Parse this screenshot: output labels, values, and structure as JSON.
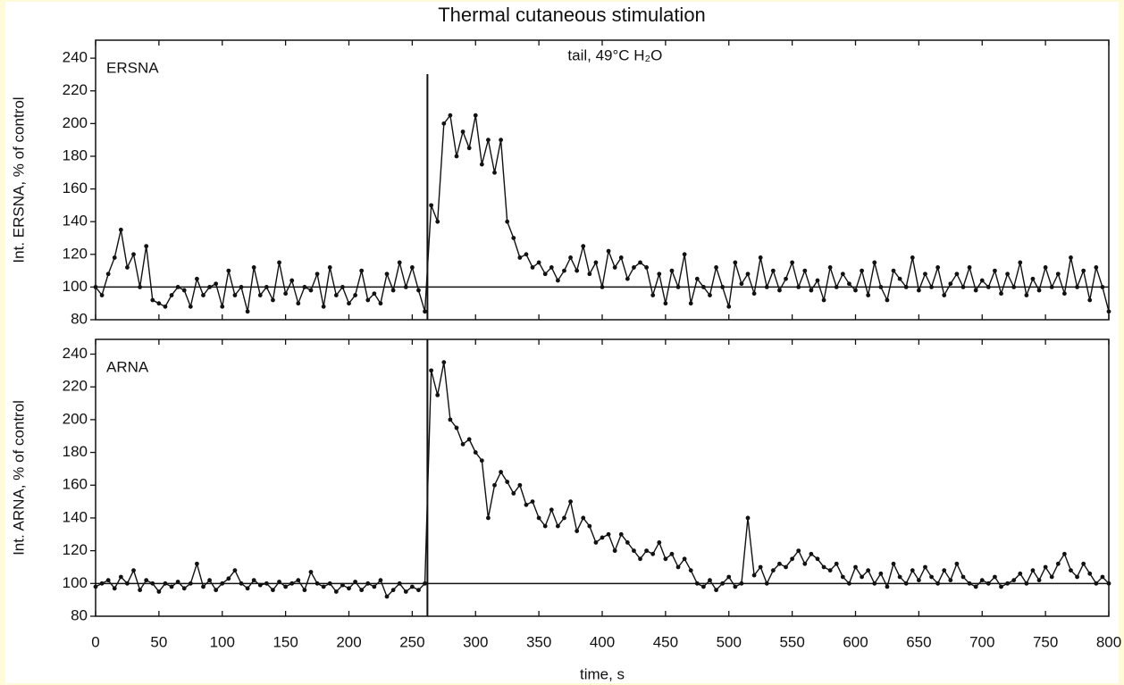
{
  "chart_data": [
    {
      "type": "line",
      "title": "Thermal cutaneous stimulation",
      "ylabel": "Int. ERSNA, % of control",
      "annotations": [
        {
          "text": "tail, 49°C H₂O",
          "x": 262
        }
      ],
      "reference": 100,
      "xlim": [
        0,
        800
      ],
      "xticks": [
        0,
        50,
        100,
        150,
        200,
        250,
        300,
        350,
        400,
        450,
        500,
        550,
        600,
        650,
        700,
        750,
        800
      ],
      "ylim": [
        80,
        251
      ],
      "yticks": [
        80,
        100,
        120,
        140,
        160,
        180,
        200,
        220,
        240
      ],
      "x": [
        0,
        5,
        10,
        15,
        20,
        25,
        30,
        35,
        40,
        45,
        50,
        55,
        60,
        65,
        70,
        75,
        80,
        85,
        90,
        95,
        100,
        105,
        110,
        115,
        120,
        125,
        130,
        135,
        140,
        145,
        150,
        155,
        160,
        165,
        170,
        175,
        180,
        185,
        190,
        195,
        200,
        205,
        210,
        215,
        220,
        225,
        230,
        235,
        240,
        245,
        250,
        255,
        260,
        265,
        270,
        275,
        280,
        285,
        290,
        295,
        300,
        305,
        310,
        315,
        320,
        325,
        330,
        335,
        340,
        345,
        350,
        355,
        360,
        365,
        370,
        375,
        380,
        385,
        390,
        395,
        400,
        405,
        410,
        415,
        420,
        425,
        430,
        435,
        440,
        445,
        450,
        455,
        460,
        465,
        470,
        475,
        480,
        485,
        490,
        495,
        500,
        505,
        510,
        515,
        520,
        525,
        530,
        535,
        540,
        545,
        550,
        555,
        560,
        565,
        570,
        575,
        580,
        585,
        590,
        595,
        600,
        605,
        610,
        615,
        620,
        625,
        630,
        635,
        640,
        645,
        650,
        655,
        660,
        665,
        670,
        675,
        680,
        685,
        690,
        695,
        700,
        705,
        710,
        715,
        720,
        725,
        730,
        735,
        740,
        745,
        750,
        755,
        760,
        765,
        770,
        775,
        780,
        785,
        790,
        795,
        800
      ],
      "series": [
        {
          "name": "ERSNA",
          "color": "#111111",
          "values": [
            100,
            95,
            108,
            118,
            135,
            112,
            120,
            100,
            125,
            92,
            90,
            88,
            95,
            100,
            98,
            88,
            105,
            95,
            100,
            102,
            88,
            110,
            95,
            100,
            85,
            112,
            95,
            100,
            92,
            115,
            96,
            104,
            90,
            100,
            98,
            108,
            88,
            112,
            95,
            100,
            90,
            95,
            110,
            92,
            96,
            90,
            108,
            98,
            115,
            100,
            112,
            98,
            85,
            150,
            140,
            200,
            205,
            180,
            195,
            185,
            205,
            175,
            190,
            170,
            190,
            140,
            130,
            118,
            120,
            112,
            115,
            108,
            112,
            104,
            110,
            118,
            110,
            125,
            108,
            115,
            100,
            122,
            112,
            118,
            105,
            112,
            115,
            112,
            95,
            108,
            90,
            110,
            100,
            120,
            90,
            105,
            100,
            95,
            112,
            100,
            88,
            115,
            102,
            108,
            96,
            118,
            100,
            110,
            98,
            105,
            115,
            100,
            110,
            98,
            104,
            92,
            112,
            100,
            108,
            102,
            98,
            110,
            95,
            115,
            100,
            92,
            110,
            105,
            100,
            118,
            98,
            108,
            100,
            112,
            95,
            102,
            108,
            100,
            112,
            98,
            104,
            100,
            110,
            96,
            108,
            100,
            115,
            95,
            105,
            98,
            112,
            100,
            108,
            96,
            118,
            100,
            110,
            92,
            112,
            100,
            85
          ]
        }
      ]
    },
    {
      "type": "line",
      "ylabel": "Int. ARNA, % of control",
      "xlabel": "time, s",
      "annotations": [
        {
          "x": 262
        }
      ],
      "reference": 100,
      "xlim": [
        0,
        800
      ],
      "xticks": [
        0,
        50,
        100,
        150,
        200,
        250,
        300,
        350,
        400,
        450,
        500,
        550,
        600,
        650,
        700,
        750,
        800
      ],
      "ylim": [
        80,
        249
      ],
      "yticks": [
        80,
        100,
        120,
        140,
        160,
        180,
        200,
        220,
        240
      ],
      "x": [
        0,
        5,
        10,
        15,
        20,
        25,
        30,
        35,
        40,
        45,
        50,
        55,
        60,
        65,
        70,
        75,
        80,
        85,
        90,
        95,
        100,
        105,
        110,
        115,
        120,
        125,
        130,
        135,
        140,
        145,
        150,
        155,
        160,
        165,
        170,
        175,
        180,
        185,
        190,
        195,
        200,
        205,
        210,
        215,
        220,
        225,
        230,
        235,
        240,
        245,
        250,
        255,
        260,
        265,
        270,
        275,
        280,
        285,
        290,
        295,
        300,
        305,
        310,
        315,
        320,
        325,
        330,
        335,
        340,
        345,
        350,
        355,
        360,
        365,
        370,
        375,
        380,
        385,
        390,
        395,
        400,
        405,
        410,
        415,
        420,
        425,
        430,
        435,
        440,
        445,
        450,
        455,
        460,
        465,
        470,
        475,
        480,
        485,
        490,
        495,
        500,
        505,
        510,
        515,
        520,
        525,
        530,
        535,
        540,
        545,
        550,
        555,
        560,
        565,
        570,
        575,
        580,
        585,
        590,
        595,
        600,
        605,
        610,
        615,
        620,
        625,
        630,
        635,
        640,
        645,
        650,
        655,
        660,
        665,
        670,
        675,
        680,
        685,
        690,
        695,
        700,
        705,
        710,
        715,
        720,
        725,
        730,
        735,
        740,
        745,
        750,
        755,
        760,
        765,
        770,
        775,
        780,
        785,
        790,
        795,
        800
      ],
      "series": [
        {
          "name": "ARNA",
          "color": "#111111",
          "values": [
            98,
            100,
            102,
            97,
            104,
            100,
            108,
            96,
            102,
            100,
            95,
            100,
            98,
            101,
            97,
            100,
            112,
            98,
            102,
            96,
            100,
            103,
            108,
            100,
            97,
            102,
            99,
            100,
            96,
            101,
            98,
            100,
            102,
            96,
            107,
            100,
            98,
            100,
            95,
            99,
            97,
            101,
            96,
            100,
            98,
            102,
            92,
            96,
            100,
            95,
            98,
            96,
            100,
            230,
            215,
            235,
            200,
            195,
            185,
            188,
            180,
            175,
            140,
            160,
            168,
            162,
            155,
            160,
            148,
            150,
            140,
            135,
            145,
            135,
            140,
            150,
            132,
            140,
            135,
            125,
            128,
            130,
            120,
            130,
            125,
            120,
            115,
            120,
            118,
            125,
            115,
            118,
            110,
            115,
            108,
            100,
            98,
            102,
            96,
            100,
            104,
            98,
            100,
            140,
            105,
            110,
            100,
            108,
            112,
            110,
            115,
            120,
            112,
            118,
            115,
            110,
            108,
            112,
            104,
            100,
            110,
            104,
            108,
            100,
            106,
            98,
            112,
            104,
            100,
            108,
            102,
            110,
            104,
            100,
            108,
            102,
            112,
            104,
            100,
            98,
            102,
            100,
            104,
            98,
            100,
            102,
            106,
            100,
            108,
            102,
            110,
            104,
            112,
            118,
            108,
            104,
            112,
            106,
            100,
            104,
            100
          ]
        }
      ]
    }
  ]
}
